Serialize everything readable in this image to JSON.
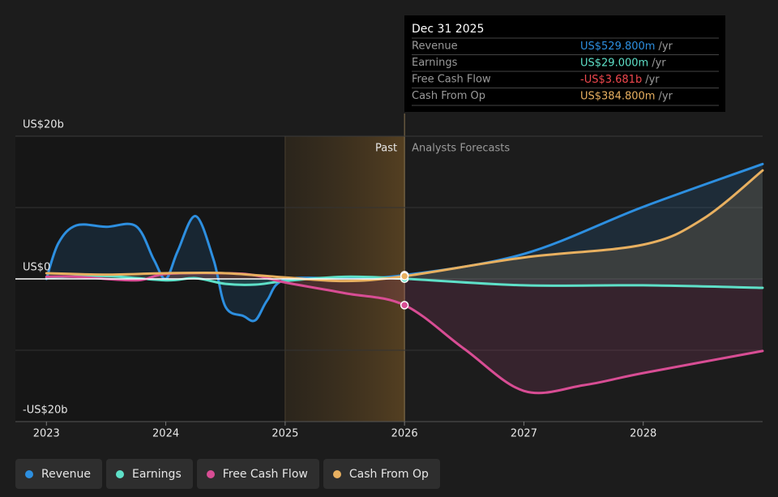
{
  "chart_data": {
    "type": "line",
    "xlim": [
      2022.74,
      2029.0
    ],
    "xticks": [
      2023,
      2024,
      2025,
      2026,
      2027,
      2028
    ],
    "ylim": [
      -20,
      20
    ],
    "yticks": [
      {
        "value": -20,
        "label": "-US$20b"
      },
      {
        "value": 0,
        "label": "US$0"
      },
      {
        "value": 20,
        "label": "US$20b"
      }
    ],
    "ygrid": [
      -10,
      10
    ],
    "shade_start": 2025,
    "forecast_start": 2026,
    "past_label": "Past",
    "forecast_label": "Analysts Forecasts",
    "tooltip": {
      "title": "Dec 31 2025",
      "rate": "/yr",
      "negative_color": "#f0484e"
    },
    "series": [
      {
        "name": "Revenue",
        "color": "#2d8fe0",
        "x": [
          2023.0,
          2023.1,
          2023.25,
          2023.5,
          2023.75,
          2023.9,
          2024.0,
          2024.1,
          2024.25,
          2024.4,
          2024.5,
          2024.65,
          2024.75,
          2024.85,
          2025.0,
          2025.5,
          2026.0,
          2027.0,
          2028.0,
          2029.0
        ],
        "values": [
          0,
          5,
          7.5,
          7.3,
          7.4,
          2.7,
          0,
          3.9,
          8.8,
          2.7,
          -3.9,
          -5.2,
          -5.8,
          -3,
          -0.1,
          0.1,
          0.5298,
          3.5,
          10.1,
          16.1
        ],
        "value_labels": [
          null,
          null,
          null,
          null,
          null,
          null,
          null,
          null,
          null,
          null,
          null,
          null,
          null,
          null,
          null,
          null,
          "US$529.800m",
          null,
          null,
          null
        ]
      },
      {
        "name": "Earnings",
        "color": "#5ee0c8",
        "x": [
          2023.0,
          2023.5,
          2024.0,
          2024.25,
          2024.5,
          2024.75,
          2025.0,
          2025.5,
          2026.0,
          2027.0,
          2028.0,
          2029.0
        ],
        "values": [
          0.2,
          0.4,
          -0.2,
          0.1,
          -0.7,
          -0.8,
          -0.3,
          0.3,
          0.029,
          -0.9,
          -0.9,
          -1.25
        ],
        "value_labels": [
          null,
          null,
          null,
          null,
          null,
          null,
          null,
          null,
          "US$29.000m",
          null,
          null,
          null
        ]
      },
      {
        "name": "Free Cash Flow",
        "color": "#d84d94",
        "x": [
          2023.0,
          2023.25,
          2023.75,
          2024.0,
          2024.5,
          2024.75,
          2025.0,
          2025.5,
          2026.0,
          2026.5,
          2027.0,
          2027.5,
          2028.0,
          2029.0
        ],
        "values": [
          0.3,
          0.3,
          -0.2,
          0.7,
          0.8,
          0.5,
          -0.5,
          -2,
          -3.681,
          -9.8,
          -15.7,
          -14.9,
          -13.2,
          -10.1
        ],
        "value_labels": [
          null,
          null,
          null,
          null,
          null,
          null,
          null,
          null,
          "-US$3.681b",
          null,
          null,
          null,
          null,
          null
        ]
      },
      {
        "name": "Cash From Op",
        "color": "#e8b060",
        "x": [
          2023.0,
          2023.5,
          2024.0,
          2024.5,
          2025.0,
          2025.5,
          2026.0,
          2027.0,
          2028.0,
          2028.5,
          2029.0
        ],
        "values": [
          0.8,
          0.6,
          0.8,
          0.8,
          0.2,
          -0.3,
          0.3848,
          3.0,
          4.8,
          8.4,
          15.2
        ],
        "value_labels": [
          null,
          null,
          null,
          null,
          null,
          null,
          "US$384.800m",
          null,
          null,
          null,
          null
        ]
      }
    ]
  }
}
